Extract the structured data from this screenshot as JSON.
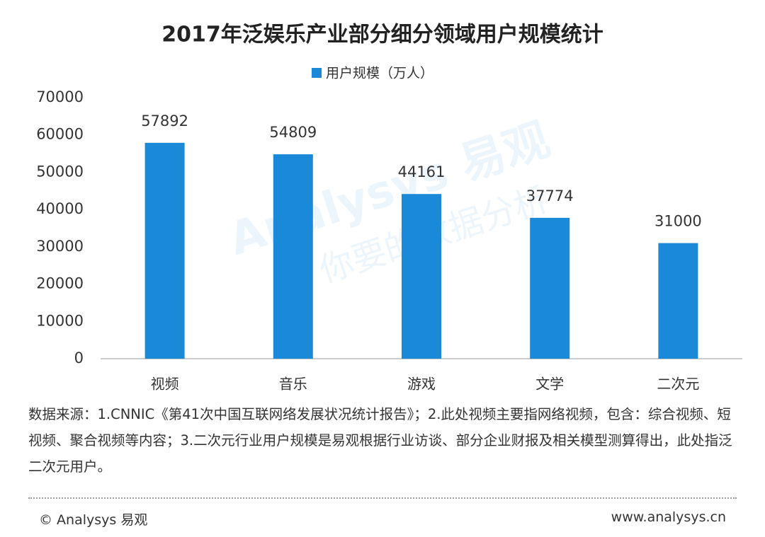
{
  "chart_data": {
    "type": "bar",
    "title": "2017年泛娱乐产业部分细分领域用户规模统计",
    "categories": [
      "视频",
      "音乐",
      "游戏",
      "文学",
      "二次元"
    ],
    "series": [
      {
        "name": "用户规模（万人）",
        "color": "#1a8ad8",
        "values": [
          57892,
          54809,
          44161,
          37774,
          31000
        ]
      }
    ],
    "ylim": [
      0,
      70000
    ],
    "yticks": [
      0,
      10000,
      20000,
      30000,
      40000,
      50000,
      60000,
      70000
    ],
    "grid": false,
    "legend": "top"
  },
  "watermark": {
    "brand": "Analysys 易观",
    "slogan": "你要的数据分析"
  },
  "source_note": "数据来源：1.CNNIC《第41次中国互联网络发展状况统计报告》；2.此处视频主要指网络视频，包含：综合视频、短视频、聚合视频等内容；3.二次元行业用户规模是易观根据行业访谈、部分企业财报及相关模型测算得出，此处指泛二次元用户。",
  "footer": {
    "copyright": "© Analysys 易观",
    "url": "www.analysys.cn"
  }
}
